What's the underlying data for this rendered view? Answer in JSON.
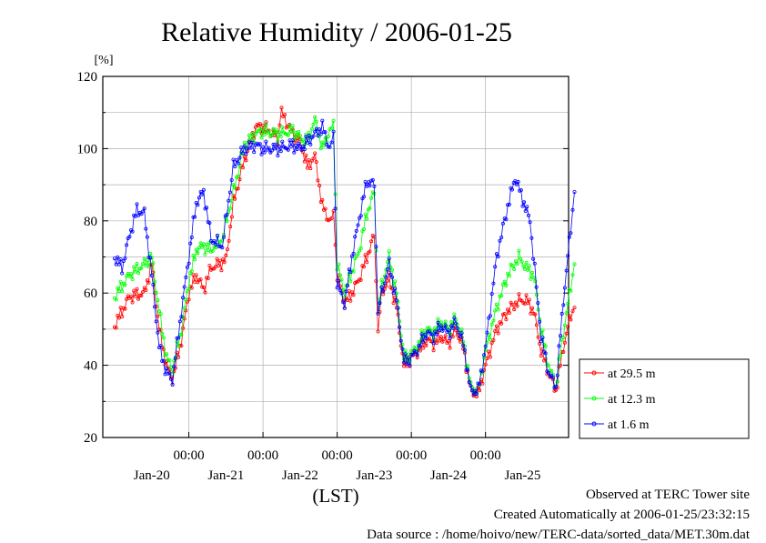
{
  "chart_data": {
    "type": "line",
    "title": "Relative Humidity / 2006-01-25",
    "ylabel": "[%]",
    "xlabel": "(LST)",
    "ylim": [
      20,
      120
    ],
    "yticks": [
      "20",
      "40",
      "60",
      "80",
      "100",
      "120"
    ],
    "x_time_labels": [
      "00:00",
      "00:00",
      "00:00",
      "00:00",
      "00:00"
    ],
    "x_day_labels": [
      "Jan-20",
      "Jan-21",
      "Jan-22",
      "Jan-23",
      "Jan-24",
      "Jan-25"
    ],
    "grid": true,
    "legend_position": "right-bottom",
    "series": [
      {
        "name": "at 29.5 m",
        "color": "#ff0000",
        "points": [
          [
            19.0,
            51
          ],
          [
            19.2,
            59
          ],
          [
            19.4,
            60
          ],
          [
            19.5,
            68
          ],
          [
            19.6,
            50
          ],
          [
            19.7,
            40
          ],
          [
            19.78,
            36
          ],
          [
            19.9,
            47
          ],
          [
            20.0,
            60
          ],
          [
            20.1,
            65
          ],
          [
            20.2,
            61
          ],
          [
            20.3,
            67
          ],
          [
            20.5,
            69
          ],
          [
            20.6,
            85
          ],
          [
            20.75,
            97
          ],
          [
            20.9,
            106
          ],
          [
            21.0,
            106
          ],
          [
            21.2,
            103
          ],
          [
            21.25,
            110
          ],
          [
            21.4,
            104
          ],
          [
            21.5,
            102
          ],
          [
            21.6,
            95
          ],
          [
            21.7,
            98
          ],
          [
            21.8,
            84
          ],
          [
            21.9,
            80
          ],
          [
            21.95,
            82
          ],
          [
            22.0,
            65
          ],
          [
            22.1,
            57
          ],
          [
            22.2,
            60
          ],
          [
            22.3,
            64
          ],
          [
            22.4,
            70
          ],
          [
            22.5,
            76
          ],
          [
            22.55,
            50
          ],
          [
            22.6,
            60
          ],
          [
            22.7,
            64
          ],
          [
            22.8,
            56
          ],
          [
            22.9,
            40
          ],
          [
            23.0,
            42
          ],
          [
            23.1,
            44
          ],
          [
            23.2,
            47
          ],
          [
            23.3,
            46
          ],
          [
            23.4,
            48
          ],
          [
            23.5,
            46
          ],
          [
            23.6,
            50
          ],
          [
            23.7,
            45
          ],
          [
            23.8,
            33
          ],
          [
            23.9,
            32
          ],
          [
            24.0,
            40
          ],
          [
            24.15,
            50
          ],
          [
            24.3,
            55
          ],
          [
            24.45,
            58
          ],
          [
            24.55,
            58
          ],
          [
            24.65,
            55
          ],
          [
            24.75,
            44
          ],
          [
            24.85,
            38
          ],
          [
            24.95,
            33
          ],
          [
            25.05,
            45
          ],
          [
            25.15,
            54
          ],
          [
            25.2,
            56
          ]
        ]
      },
      {
        "name": "at 12.3 m",
        "color": "#00ff00",
        "points": [
          [
            19.0,
            59
          ],
          [
            19.2,
            65
          ],
          [
            19.4,
            68
          ],
          [
            19.5,
            70
          ],
          [
            19.6,
            55
          ],
          [
            19.7,
            42
          ],
          [
            19.78,
            39
          ],
          [
            19.9,
            50
          ],
          [
            20.0,
            63
          ],
          [
            20.1,
            72
          ],
          [
            20.2,
            73
          ],
          [
            20.3,
            72
          ],
          [
            20.45,
            75
          ],
          [
            20.6,
            88
          ],
          [
            20.75,
            101
          ],
          [
            20.9,
            104
          ],
          [
            21.0,
            105
          ],
          [
            21.2,
            104
          ],
          [
            21.4,
            105
          ],
          [
            21.5,
            103
          ],
          [
            21.6,
            102
          ],
          [
            21.7,
            108
          ],
          [
            21.8,
            100
          ],
          [
            21.9,
            105
          ],
          [
            21.95,
            107
          ],
          [
            22.0,
            68
          ],
          [
            22.1,
            60
          ],
          [
            22.2,
            66
          ],
          [
            22.3,
            72
          ],
          [
            22.4,
            82
          ],
          [
            22.5,
            88
          ],
          [
            22.55,
            55
          ],
          [
            22.6,
            62
          ],
          [
            22.7,
            70
          ],
          [
            22.8,
            60
          ],
          [
            22.9,
            42
          ],
          [
            23.0,
            43
          ],
          [
            23.1,
            46
          ],
          [
            23.2,
            50
          ],
          [
            23.3,
            49
          ],
          [
            23.4,
            52
          ],
          [
            23.5,
            50
          ],
          [
            23.6,
            53
          ],
          [
            23.7,
            47
          ],
          [
            23.8,
            34
          ],
          [
            23.9,
            33
          ],
          [
            24.0,
            44
          ],
          [
            24.15,
            56
          ],
          [
            24.3,
            65
          ],
          [
            24.45,
            70
          ],
          [
            24.55,
            67
          ],
          [
            24.65,
            65
          ],
          [
            24.75,
            50
          ],
          [
            24.85,
            40
          ],
          [
            24.95,
            34
          ],
          [
            25.05,
            49
          ],
          [
            25.15,
            62
          ],
          [
            25.2,
            68
          ]
        ]
      },
      {
        "name": "at 1.6 m",
        "color": "#0000ff",
        "points": [
          [
            19.0,
            70
          ],
          [
            19.1,
            67
          ],
          [
            19.2,
            76
          ],
          [
            19.3,
            83
          ],
          [
            19.4,
            82
          ],
          [
            19.5,
            65
          ],
          [
            19.6,
            45
          ],
          [
            19.7,
            38
          ],
          [
            19.78,
            36
          ],
          [
            19.9,
            55
          ],
          [
            20.0,
            70
          ],
          [
            20.1,
            85
          ],
          [
            20.2,
            88
          ],
          [
            20.3,
            75
          ],
          [
            20.45,
            73
          ],
          [
            20.6,
            95
          ],
          [
            20.75,
            100
          ],
          [
            20.9,
            101
          ],
          [
            21.0,
            100
          ],
          [
            21.2,
            100
          ],
          [
            21.4,
            101
          ],
          [
            21.5,
            100
          ],
          [
            21.6,
            102
          ],
          [
            21.7,
            104
          ],
          [
            21.8,
            106
          ],
          [
            21.9,
            100
          ],
          [
            21.95,
            104
          ],
          [
            22.0,
            63
          ],
          [
            22.1,
            57
          ],
          [
            22.2,
            70
          ],
          [
            22.3,
            81
          ],
          [
            22.4,
            91
          ],
          [
            22.5,
            90
          ],
          [
            22.55,
            55
          ],
          [
            22.6,
            60
          ],
          [
            22.7,
            68
          ],
          [
            22.8,
            58
          ],
          [
            22.9,
            41
          ],
          [
            23.0,
            42
          ],
          [
            23.1,
            45
          ],
          [
            23.2,
            49
          ],
          [
            23.3,
            48
          ],
          [
            23.4,
            51
          ],
          [
            23.5,
            49
          ],
          [
            23.6,
            52
          ],
          [
            23.7,
            46
          ],
          [
            23.8,
            33
          ],
          [
            23.9,
            33
          ],
          [
            24.0,
            45
          ],
          [
            24.15,
            70
          ],
          [
            24.3,
            84
          ],
          [
            24.4,
            92
          ],
          [
            24.5,
            86
          ],
          [
            24.6,
            80
          ],
          [
            24.75,
            48
          ],
          [
            24.85,
            38
          ],
          [
            24.95,
            34
          ],
          [
            25.05,
            58
          ],
          [
            25.15,
            78
          ],
          [
            25.2,
            88
          ]
        ]
      }
    ],
    "x_range_days": [
      18.84,
      25.12
    ],
    "x_time_positions": [
      20.0,
      21.0,
      22.0,
      23.0,
      24.0
    ],
    "x_day_positions": [
      19.5,
      20.5,
      21.5,
      22.5,
      23.5,
      24.5
    ]
  },
  "footer": {
    "line1": "Observed at TERC Tower site",
    "line2": "Created Automatically at 2006-01-25/23:32:15",
    "line3": "Data source : /home/hoivo/new/TERC-data/sorted_data/MET.30m.dat"
  }
}
